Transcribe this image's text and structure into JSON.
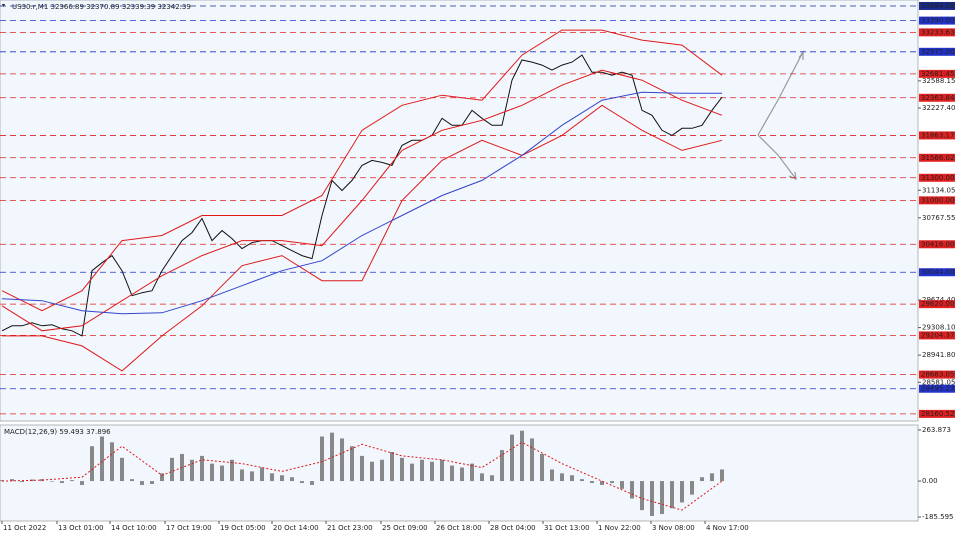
{
  "chart_data": [
    {
      "type": "line",
      "title": "US30.r,M1  32366.89 32370.89 32339.39 32342.39",
      "xlim": [
        -0.2,
        91.6
      ],
      "ylim": [
        28066,
        33664
      ],
      "xticks": [
        {
          "value": 0,
          "label": "11 Oct 2022"
        },
        {
          "value": 5.5,
          "label": "13 Oct 01:00"
        },
        {
          "value": 10.8,
          "label": "14 Oct 10:00"
        },
        {
          "value": 16.3,
          "label": "17 Oct 19:00"
        },
        {
          "value": 21.7,
          "label": "19 Oct 05:00"
        },
        {
          "value": 27,
          "label": "20 Oct 14:00"
        },
        {
          "value": 32.4,
          "label": "21 Oct 23:00"
        },
        {
          "value": 37.9,
          "label": "25 Oct 09:00"
        },
        {
          "value": 43.3,
          "label": "26 Oct 18:00"
        },
        {
          "value": 48.7,
          "label": "28 Oct 04:00"
        },
        {
          "value": 54.1,
          "label": "31 Oct 13:00"
        },
        {
          "value": 59.5,
          "label": "1 Nov 22:00"
        },
        {
          "value": 64.9,
          "label": "3 Nov 08:00"
        },
        {
          "value": 70.3,
          "label": "4 Nov 17:00"
        }
      ],
      "yticks": [
        {
          "value": 32588.15,
          "label": "32588.15"
        },
        {
          "value": 32227.4,
          "label": "32227.40"
        },
        {
          "value": 31134.05,
          "label": "31134.05"
        },
        {
          "value": 30767.55,
          "label": "30767.55"
        },
        {
          "value": 29674.4,
          "label": "29674.40"
        },
        {
          "value": 29308.1,
          "label": "29308.10"
        },
        {
          "value": 28941.8,
          "label": "28941.80"
        },
        {
          "value": 28581.05,
          "label": "28581.05"
        }
      ],
      "levels": [
        {
          "value": 33584.59,
          "label": "33584.59",
          "color": "#1a2a8a"
        },
        {
          "value": 33390,
          "label": "33390.00",
          "color": "#2233cc"
        },
        {
          "value": 33233.63,
          "label": "33233.63",
          "color": "#e02020"
        },
        {
          "value": 32975,
          "label": "32975.00",
          "color": "#2233cc"
        },
        {
          "value": 32681.45,
          "label": "32681.45",
          "color": "#e02020"
        },
        {
          "value": 32363.84,
          "label": "32363.84",
          "color": "#e02020"
        },
        {
          "value": 31863.17,
          "label": "31863.17",
          "color": "#e02020"
        },
        {
          "value": 31566.02,
          "label": "31566.02",
          "color": "#e02020"
        },
        {
          "value": 31300,
          "label": "31300.00",
          "color": "#e02020"
        },
        {
          "value": 31000,
          "label": "31000.00",
          "color": "#e02020"
        },
        {
          "value": 30416,
          "label": "30416.00",
          "color": "#e02020"
        },
        {
          "value": 30044,
          "label": "30044.00",
          "color": "#2233cc"
        },
        {
          "value": 29620,
          "label": "29620.00",
          "color": "#e02020"
        },
        {
          "value": 29204.37,
          "label": "29204.37",
          "color": "#e02020"
        },
        {
          "value": 28683.05,
          "label": "28683.05",
          "color": "#e02020"
        },
        {
          "value": 28495.23,
          "label": "28495.23",
          "color": "#2233cc"
        },
        {
          "value": 28160.52,
          "label": "28160.52",
          "color": "#e02020"
        }
      ],
      "series": [
        {
          "name": "US30.r",
          "color": "#111111",
          "x": [
            0,
            1,
            2,
            3,
            4,
            5,
            6,
            7,
            8,
            9,
            10,
            11,
            12,
            13,
            14,
            15,
            16,
            17,
            18,
            19,
            20,
            21,
            22,
            23,
            24,
            25,
            26,
            27,
            28,
            29,
            30,
            31,
            32,
            33,
            34,
            35,
            36,
            37,
            38,
            39,
            40,
            41,
            42,
            43,
            44,
            45,
            46,
            47,
            48,
            49,
            50,
            51,
            52,
            53,
            54,
            55,
            56,
            57,
            58,
            59,
            60,
            61,
            62,
            63,
            64,
            65,
            66,
            67,
            68,
            69,
            70,
            71,
            72
          ],
          "values": [
            29265,
            29332,
            29332,
            29372,
            29332,
            29345,
            29292,
            29265,
            29198,
            30065,
            30171,
            30265,
            30065,
            29732,
            29772,
            29798,
            30065,
            30265,
            30465,
            30571,
            30758,
            30465,
            30598,
            30491,
            30358,
            30438,
            30465,
            30465,
            30398,
            30331,
            30265,
            30225,
            30798,
            31265,
            31131,
            31265,
            31465,
            31531,
            31505,
            31465,
            31731,
            31798,
            31798,
            31864,
            32091,
            31998,
            31998,
            32198,
            32091,
            31998,
            31998,
            32598,
            32866,
            32838,
            32798,
            32732,
            32798,
            32838,
            32931,
            32704,
            32704,
            32664,
            32704,
            32664,
            32198,
            32131,
            31931,
            31864,
            31958,
            31958,
            31998,
            32198,
            32371
          ]
        },
        {
          "name": "BB upper",
          "color": "#e01818",
          "x": [
            0,
            4,
            8,
            12,
            16,
            20,
            24,
            28,
            32,
            36,
            40,
            44,
            48,
            52,
            56,
            60,
            64,
            68,
            72
          ],
          "values": [
            29798,
            29532,
            29798,
            30465,
            30532,
            30798,
            30798,
            30798,
            31065,
            31931,
            32264,
            32398,
            32331,
            32931,
            33264,
            33264,
            33131,
            33064,
            32664
          ]
        },
        {
          "name": "BB middle",
          "color": "#e01818",
          "x": [
            0,
            4,
            8,
            12,
            16,
            20,
            24,
            28,
            32,
            36,
            40,
            44,
            48,
            52,
            56,
            60,
            64,
            68,
            72
          ],
          "values": [
            29598,
            29265,
            29332,
            29665,
            29998,
            30265,
            30465,
            30465,
            30398,
            30998,
            31664,
            31931,
            32064,
            32264,
            32531,
            32731,
            32598,
            32331,
            32131
          ]
        },
        {
          "name": "BB lower",
          "color": "#e01818",
          "x": [
            0,
            4,
            8,
            12,
            16,
            20,
            24,
            28,
            32,
            36,
            40,
            44,
            48,
            52,
            56,
            60,
            64,
            68,
            72
          ],
          "values": [
            29198,
            29198,
            29065,
            28732,
            29198,
            29598,
            30131,
            30265,
            29932,
            29932,
            30998,
            31531,
            31798,
            31598,
            31864,
            32264,
            31931,
            31664,
            31798
          ]
        },
        {
          "name": "MA",
          "color": "#3344cc",
          "x": [
            0,
            4,
            8,
            12,
            16,
            20,
            24,
            28,
            32,
            36,
            40,
            44,
            48,
            52,
            56,
            60,
            64,
            68,
            72
          ],
          "values": [
            29692,
            29665,
            29532,
            29492,
            29505,
            29665,
            29865,
            30065,
            30198,
            30532,
            30798,
            31065,
            31265,
            31598,
            31998,
            32331,
            32438,
            32424,
            32424
          ]
        }
      ]
    },
    {
      "type": "bar",
      "title": "MACD(12,26,9) 59.493 37.896",
      "xlim": [
        -0.2,
        91.6
      ],
      "ylim": [
        -206,
        289.4
      ],
      "yticks": [
        {
          "value": 263.873,
          "label": "263.873"
        },
        {
          "value": 0,
          "label": "0.00"
        },
        {
          "value": -185.595,
          "label": "-185.595"
        }
      ],
      "x": [
        0,
        1,
        2,
        3,
        4,
        5,
        6,
        7,
        8,
        9,
        10,
        11,
        12,
        13,
        14,
        15,
        16,
        17,
        18,
        19,
        20,
        21,
        22,
        23,
        24,
        25,
        26,
        27,
        28,
        29,
        30,
        31,
        32,
        33,
        34,
        35,
        36,
        37,
        38,
        39,
        40,
        41,
        42,
        43,
        44,
        45,
        46,
        47,
        48,
        49,
        50,
        51,
        52,
        53,
        54,
        55,
        56,
        57,
        58,
        59,
        60,
        61,
        62,
        63,
        64,
        65,
        66,
        67,
        68,
        69,
        70,
        71,
        72
      ],
      "values": [
        5,
        10,
        -5,
        8,
        10,
        -3,
        -10,
        5,
        -20,
        180,
        230,
        200,
        120,
        10,
        -20,
        -15,
        40,
        120,
        140,
        110,
        130,
        90,
        80,
        110,
        60,
        50,
        70,
        40,
        30,
        20,
        -10,
        -20,
        230,
        250,
        220,
        180,
        130,
        100,
        110,
        150,
        120,
        90,
        110,
        100,
        110,
        80,
        70,
        90,
        40,
        30,
        160,
        240,
        260,
        220,
        140,
        60,
        40,
        30,
        10,
        -10,
        -20,
        -10,
        -40,
        -90,
        -150,
        -180,
        -170,
        -140,
        -110,
        -70,
        20,
        40,
        60
      ],
      "color": "#888888",
      "signal": {
        "color": "#e01818",
        "x": [
          0,
          4,
          8,
          12,
          16,
          20,
          24,
          28,
          32,
          36,
          40,
          44,
          48,
          52,
          56,
          60,
          64,
          68,
          72
        ],
        "values": [
          0,
          5,
          20,
          180,
          30,
          110,
          90,
          50,
          100,
          190,
          130,
          110,
          70,
          200,
          90,
          0,
          -90,
          -150,
          0
        ]
      }
    }
  ]
}
